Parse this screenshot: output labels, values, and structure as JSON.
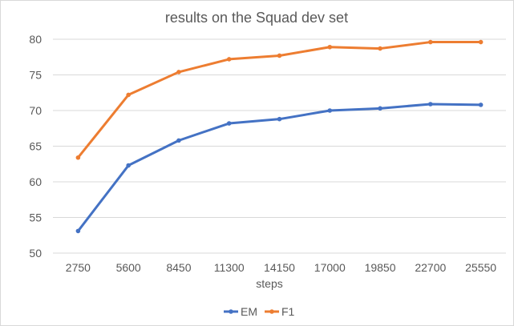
{
  "chart_data": {
    "type": "line",
    "title": "results on the Squad dev set",
    "xlabel": "steps",
    "ylabel": "",
    "categories": [
      "2750",
      "5600",
      "8450",
      "11300",
      "14150",
      "17000",
      "19850",
      "22700",
      "25550"
    ],
    "y_ticks": [
      "50",
      "55",
      "60",
      "65",
      "70",
      "75",
      "80"
    ],
    "ylim": [
      50,
      80
    ],
    "grid": true,
    "legend_position": "bottom",
    "series": [
      {
        "name": "EM",
        "color": "#4472c4",
        "values": [
          53.1,
          62.3,
          65.8,
          68.2,
          68.8,
          70.0,
          70.3,
          70.9,
          70.8
        ]
      },
      {
        "name": "F1",
        "color": "#ed7d31",
        "values": [
          63.4,
          72.2,
          75.4,
          77.2,
          77.7,
          78.9,
          78.7,
          79.6,
          79.6
        ]
      }
    ]
  }
}
